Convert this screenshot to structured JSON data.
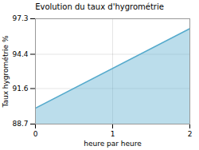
{
  "chart_data": {
    "type": "area",
    "title": "Evolution du taux d'hygrométrie",
    "xlabel": "heure par heure",
    "ylabel": "Taux hygrométrie %",
    "x": [
      0,
      2
    ],
    "values": [
      90.0,
      96.5
    ],
    "color": "#55aacc",
    "xlim": [
      0,
      2
    ],
    "xticks": [
      0,
      1,
      2
    ],
    "ylim": [
      88.7,
      97.3
    ],
    "yticks": [
      88.7,
      91.6,
      94.4,
      97.3
    ],
    "grid": true
  }
}
